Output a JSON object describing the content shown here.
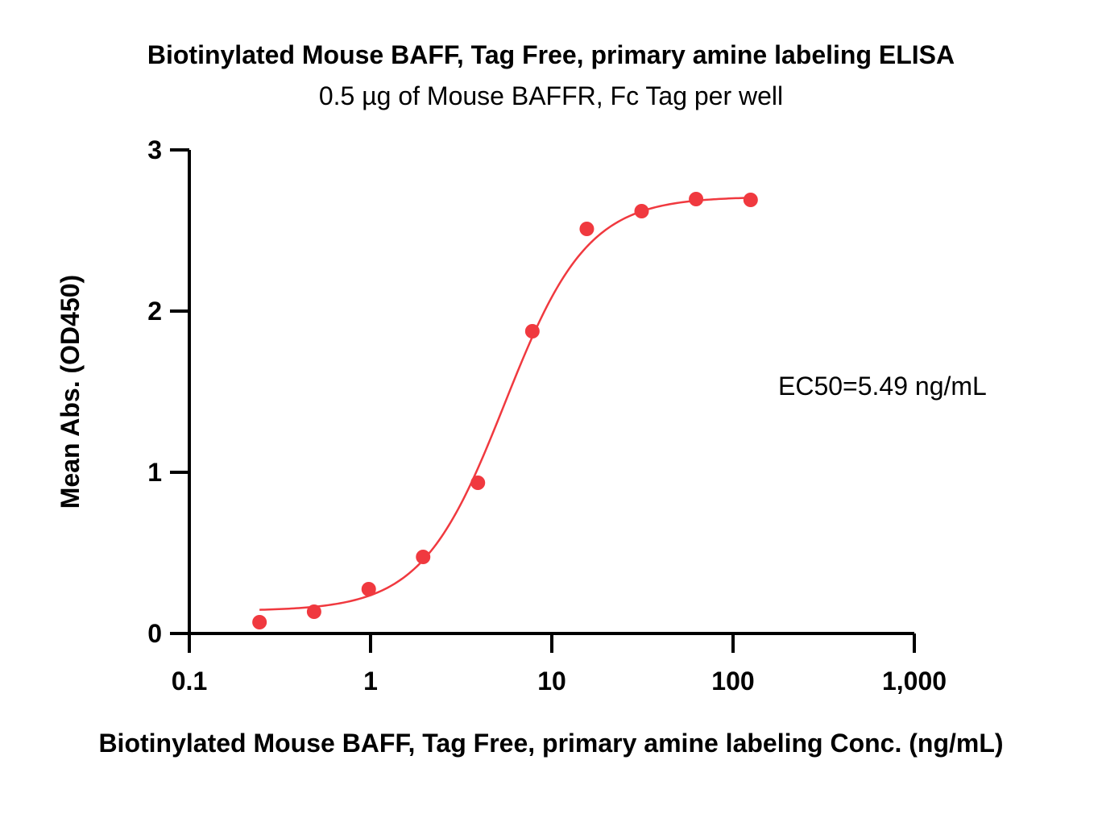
{
  "chart_data": {
    "type": "scatter",
    "title": "Biotinylated Mouse BAFF, Tag Free, primary amine labeling ELISA",
    "subtitle": "0.5 µg of Mouse BAFFR, Fc Tag per well",
    "xlabel": "Biotinylated Mouse BAFF, Tag Free, primary amine labeling Conc. (ng/mL)",
    "ylabel": "Mean Abs. (OD450)",
    "x_scale": "log",
    "xlim": [
      0.1,
      1000
    ],
    "ylim": [
      0,
      3
    ],
    "x_ticks": [
      0.1,
      1,
      10,
      100,
      1000
    ],
    "x_tick_labels": [
      "0.1",
      "1",
      "10",
      "100",
      "1,000"
    ],
    "y_ticks": [
      0,
      1,
      2,
      3
    ],
    "y_tick_labels": [
      "0",
      "1",
      "2",
      "3"
    ],
    "grid": false,
    "series": [
      {
        "x": [
          0.244,
          0.488,
          0.977,
          1.95,
          3.91,
          7.81,
          15.6,
          31.3,
          62.5,
          125
        ],
        "y": [
          0.07,
          0.135,
          0.275,
          0.475,
          0.935,
          1.875,
          2.51,
          2.62,
          2.695,
          2.69
        ],
        "color": "#f0393f"
      }
    ],
    "fit_curve": {
      "model": "4PL",
      "bottom": 0.14,
      "top": 2.71,
      "ec50": 5.49,
      "hill": 1.9,
      "x_range": [
        0.244,
        125
      ],
      "color": "#f0393f"
    },
    "annotation": "EC50=5.49 ng/mL"
  }
}
